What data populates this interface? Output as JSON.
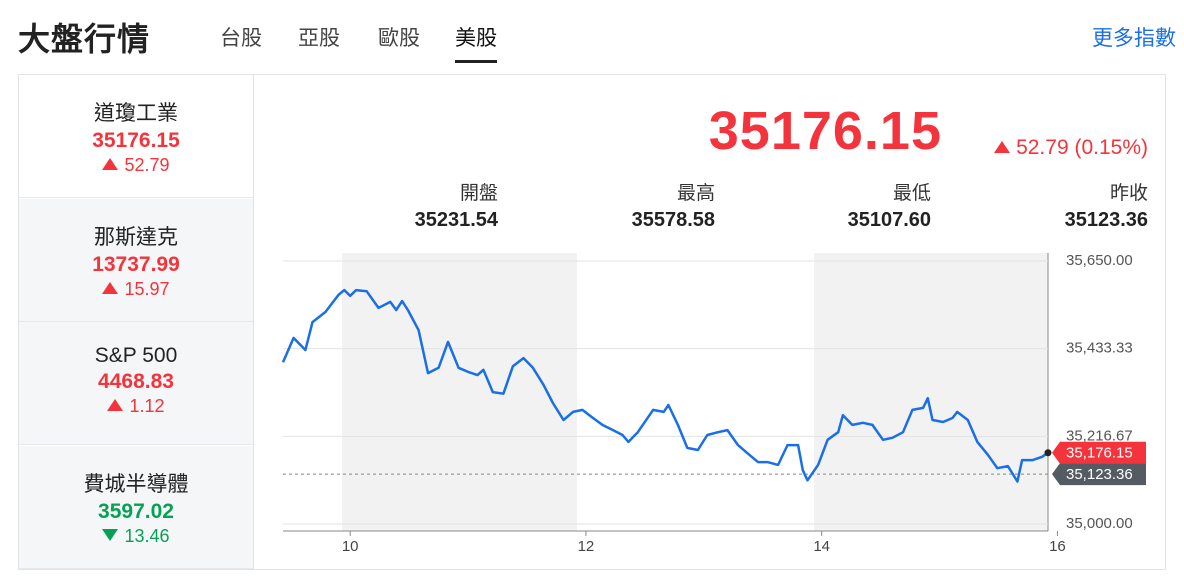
{
  "header": {
    "title": "大盤行情",
    "tabs": [
      "台股",
      "亞股",
      "歐股",
      "美股"
    ],
    "active_tab": 3,
    "link": "更多指數"
  },
  "indices": [
    {
      "name": "道瓊工業",
      "price": "35176.15",
      "change": "52.79",
      "direction": "up"
    },
    {
      "name": "那斯達克",
      "price": "13737.99",
      "change": "15.97",
      "direction": "up"
    },
    {
      "name": "S&P 500",
      "price": "4468.83",
      "change": "1.12",
      "direction": "up"
    },
    {
      "name": "費城半導體",
      "price": "3597.02",
      "change": "13.46",
      "direction": "down"
    }
  ],
  "selected_index": 0,
  "quote": {
    "price": "35176.15",
    "change": "52.79 (0.15%)",
    "direction": "up",
    "stats": [
      {
        "label": "開盤",
        "value": "35231.54"
      },
      {
        "label": "最高",
        "value": "35578.58"
      },
      {
        "label": "最低",
        "value": "35107.60"
      },
      {
        "label": "昨收",
        "value": "35123.36"
      }
    ]
  },
  "chart_data": {
    "type": "line",
    "color": "#1a6fe6",
    "x": [
      9.43,
      9.52,
      9.62,
      9.68,
      9.79,
      9.9,
      9.95,
      10.0,
      10.05,
      10.14,
      10.24,
      10.34,
      10.39,
      10.44,
      10.49,
      10.58,
      10.66,
      10.75,
      10.83,
      10.92,
      11.0,
      11.08,
      11.13,
      11.21,
      11.3,
      11.38,
      11.47,
      11.55,
      11.64,
      11.72,
      11.81,
      11.89,
      11.97,
      12.06,
      12.14,
      12.23,
      12.31,
      12.36,
      12.44,
      12.57,
      12.66,
      12.7,
      12.78,
      12.86,
      12.95,
      13.03,
      13.12,
      13.2,
      13.29,
      13.37,
      13.46,
      13.54,
      13.63,
      13.71,
      13.8,
      13.84,
      13.88,
      13.97,
      14.05,
      14.14,
      14.18,
      14.26,
      14.35,
      14.43,
      14.52,
      14.6,
      14.69,
      14.77,
      14.86,
      14.9,
      14.94,
      15.03,
      15.11,
      15.15,
      15.24,
      15.32,
      15.41,
      15.49,
      15.58,
      15.66,
      15.7,
      15.79,
      15.87,
      15.92
    ],
    "values": [
      35400,
      35460,
      35430,
      35499,
      35524,
      35566,
      35578,
      35564,
      35578,
      35575,
      35534,
      35549,
      35529,
      35551,
      35529,
      35479,
      35373,
      35386,
      35450,
      35386,
      35376,
      35368,
      35381,
      35326,
      35322,
      35390,
      35410,
      35386,
      35344,
      35299,
      35257,
      35277,
      35282,
      35262,
      35245,
      35232,
      35220,
      35203,
      35227,
      35282,
      35277,
      35294,
      35245,
      35188,
      35183,
      35220,
      35227,
      35232,
      35195,
      35175,
      35153,
      35153,
      35146,
      35195,
      35195,
      35133,
      35108,
      35146,
      35208,
      35227,
      35269,
      35245,
      35250,
      35245,
      35208,
      35213,
      35227,
      35282,
      35287,
      35311,
      35257,
      35252,
      35262,
      35277,
      35257,
      35203,
      35171,
      35138,
      35143,
      35105,
      35158,
      35158,
      35166,
      35176.15
    ],
    "xlim": [
      9.43,
      15.92
    ],
    "xticks": [
      10,
      12,
      14,
      16
    ],
    "ylim": [
      35000,
      35650
    ],
    "yticks": [
      {
        "value": 35000,
        "label": "35,000.00"
      },
      {
        "value": 35216.67,
        "label": "35,216.67"
      },
      {
        "value": 35433.33,
        "label": "35,433.33"
      },
      {
        "value": 35650,
        "label": "35,650.00"
      }
    ],
    "grid": true,
    "reference": {
      "value": 35123.36,
      "label": "35,123.36"
    },
    "current": {
      "value": 35176.15,
      "label": "35,176.15"
    }
  }
}
